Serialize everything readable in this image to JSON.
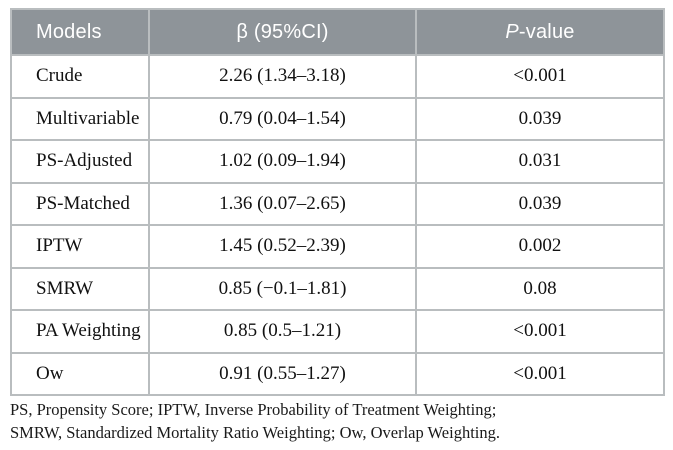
{
  "colors": {
    "header_bg": "#8e9499",
    "header_text": "#ffffff",
    "border": "#b9bdbf",
    "body_text": "#111111"
  },
  "table": {
    "header": {
      "models": "Models",
      "beta_ci": "β (95%CI)",
      "p_italic": "P",
      "p_rest": "-value"
    },
    "rows": [
      {
        "model": "Crude",
        "beta_ci": "2.26 (1.34–3.18)",
        "p_value": "<0.001"
      },
      {
        "model": "Multivariable",
        "beta_ci": "0.79 (0.04–1.54)",
        "p_value": "0.039"
      },
      {
        "model": "PS-Adjusted",
        "beta_ci": "1.02 (0.09–1.94)",
        "p_value": "0.031"
      },
      {
        "model": "PS-Matched",
        "beta_ci": "1.36 (0.07–2.65)",
        "p_value": "0.039"
      },
      {
        "model": "IPTW",
        "beta_ci": "1.45 (0.52–2.39)",
        "p_value": "0.002"
      },
      {
        "model": "SMRW",
        "beta_ci": "0.85 (−0.1–1.81)",
        "p_value": "0.08"
      },
      {
        "model": "PA Weighting",
        "beta_ci": "0.85 (0.5–1.21)",
        "p_value": "<0.001"
      },
      {
        "model": "Ow",
        "beta_ci": "0.91 (0.55–1.27)",
        "p_value": "<0.001"
      }
    ]
  },
  "footnote": {
    "line1": "PS, Propensity Score; IPTW, Inverse Probability of Treatment Weighting;",
    "line2": "SMRW, Standardized Mortality Ratio Weighting; Ow, Overlap Weighting."
  }
}
